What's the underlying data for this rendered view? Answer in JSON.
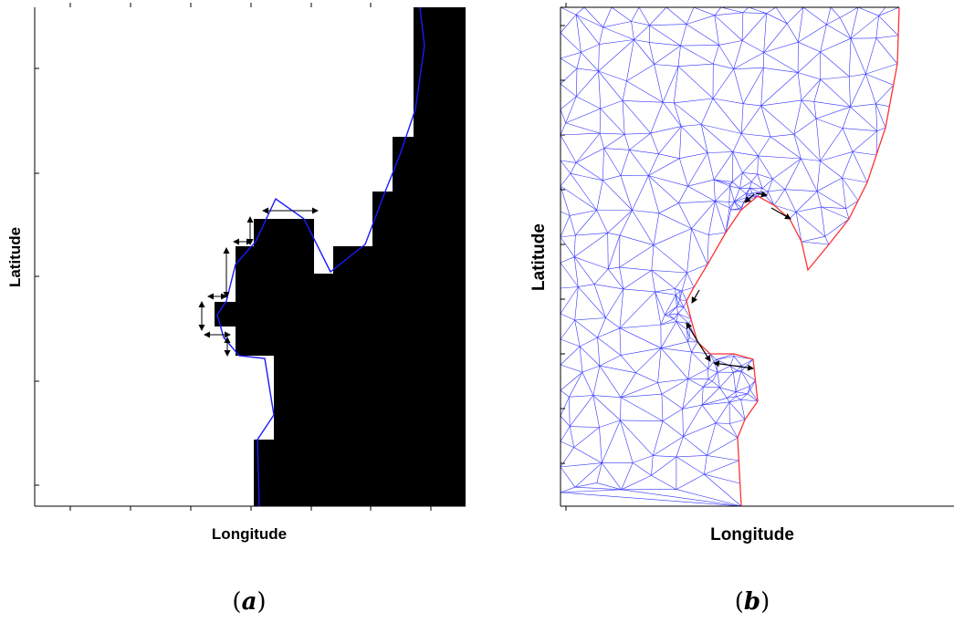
{
  "panel_a": {
    "caption_letter": "a",
    "xlabel": "Longitude",
    "ylabel": "Latitude",
    "land_color": "#000000",
    "coastline_color": "#1a1aff"
  },
  "panel_b": {
    "caption_letter": "b",
    "xlabel": "Longitude",
    "ylabel": "Latitude",
    "mesh_color": "#3333ff",
    "boundary_color": "#ff3333"
  }
}
